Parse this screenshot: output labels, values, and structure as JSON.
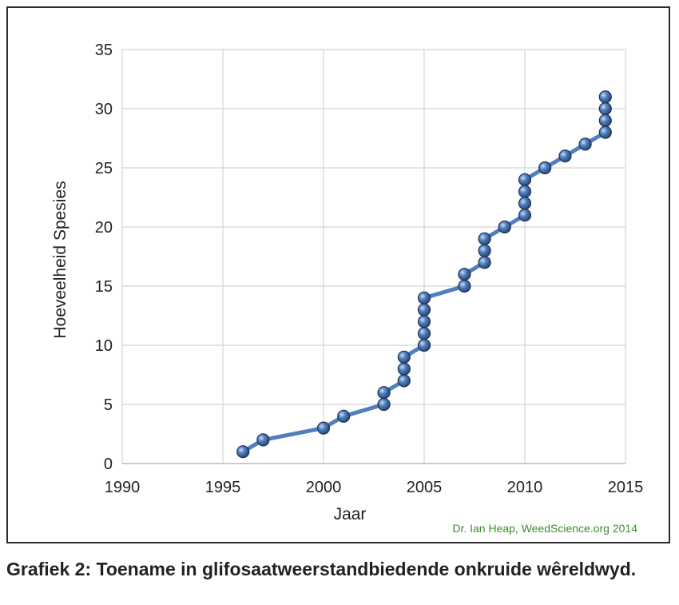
{
  "chart_data": {
    "type": "line",
    "xlabel": "Jaar",
    "ylabel": "Hoeveelheid Spesies",
    "xlim": [
      1990,
      2015
    ],
    "ylim": [
      0,
      35
    ],
    "xticks": [
      "1990",
      "1995",
      "2000",
      "2005",
      "2010",
      "2015"
    ],
    "yticks": [
      "0",
      "5",
      "10",
      "15",
      "20",
      "25",
      "30",
      "35"
    ],
    "grid": true,
    "legend": "none",
    "series": [
      {
        "x": [
          1996,
          1997,
          2000,
          2001,
          2003,
          2003,
          2004,
          2004,
          2004,
          2005,
          2005,
          2005,
          2005,
          2005,
          2007,
          2007,
          2008,
          2008,
          2008,
          2009,
          2010,
          2010,
          2010,
          2010,
          2011,
          2012,
          2013,
          2014,
          2014,
          2014,
          2014
        ],
        "y": [
          1,
          2,
          3,
          4,
          5,
          6,
          7,
          8,
          9,
          10,
          11,
          12,
          13,
          14,
          15,
          16,
          17,
          18,
          19,
          20,
          21,
          22,
          23,
          24,
          25,
          26,
          27,
          28,
          29,
          30,
          31
        ]
      }
    ],
    "annotation": "Dr. Ian Heap, WeedScience.org  2014"
  },
  "colors": {
    "line": "#4f7fc0",
    "marker": "#2c4a78",
    "annotation": "#3f8c32",
    "grid": "#d4d4d4"
  },
  "caption": "Grafiek 2: Toename in glifosaatweerstandbiedende onkruide wêreldwyd."
}
